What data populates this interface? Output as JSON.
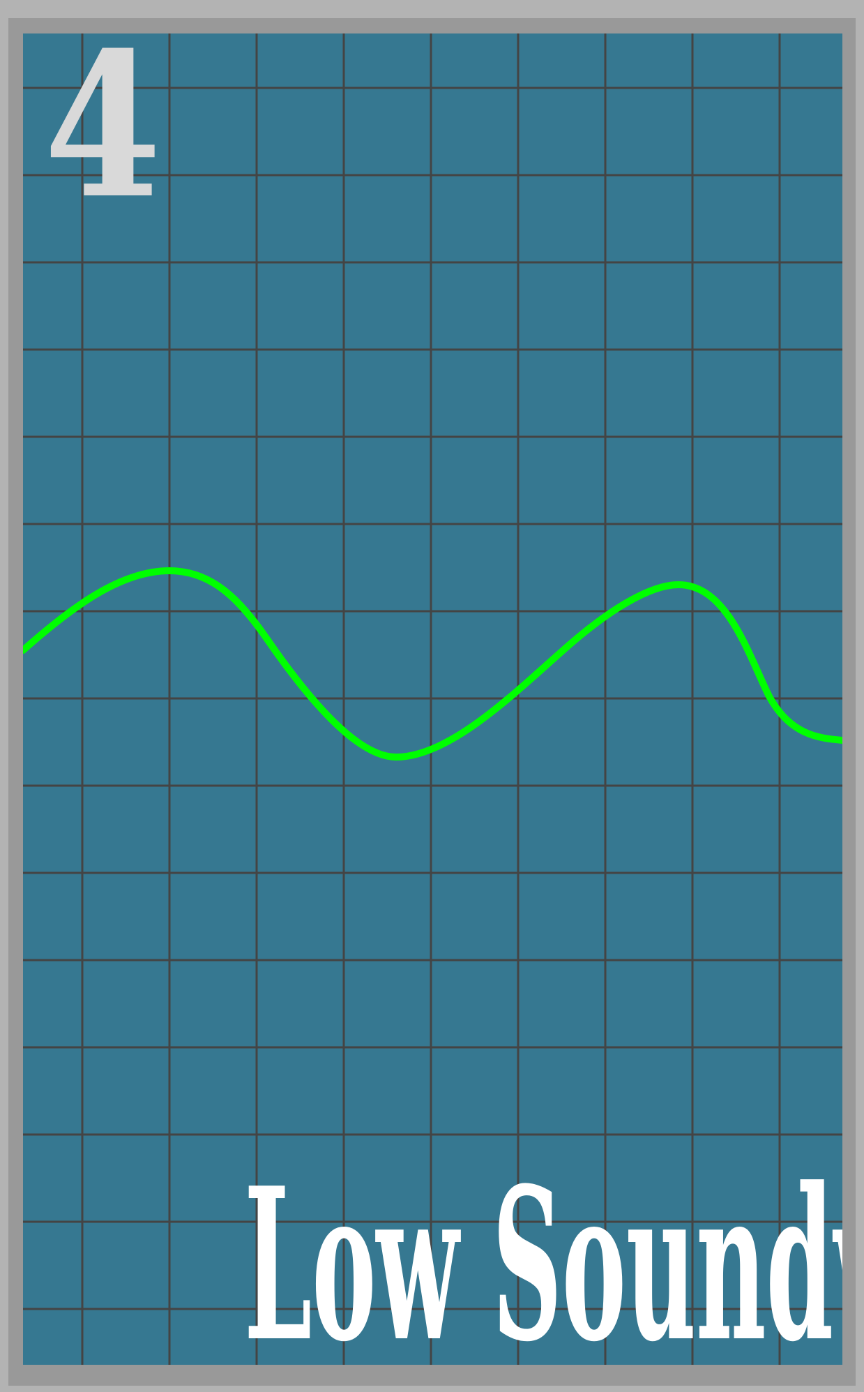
{
  "card": {
    "number": "4",
    "title": "Low Soundwave"
  },
  "colors": {
    "border_outer": "#b3b3b3",
    "border_inner": "#999999",
    "background": "#367891",
    "grid": "#444444",
    "wave": "#00ff00",
    "number": "#d9d9d9",
    "title": "#ffffff"
  },
  "icons": {
    "wave": "soundwave-icon"
  }
}
